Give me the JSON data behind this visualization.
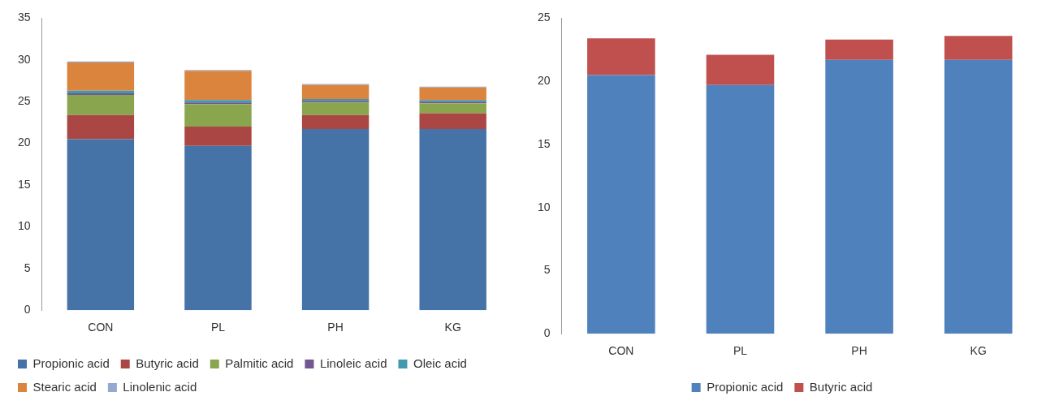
{
  "chart_data": [
    {
      "type": "bar",
      "stacked": true,
      "categories": [
        "CON",
        "PL",
        "PH",
        "KG"
      ],
      "ylim": [
        0,
        35
      ],
      "yticks": [
        0,
        5,
        10,
        15,
        20,
        25,
        30,
        35
      ],
      "grid": false,
      "legend": "bottom",
      "series": [
        {
          "name": "Propionic acid",
          "color": "#4572a7",
          "values": [
            20.5,
            19.7,
            21.7,
            21.7
          ]
        },
        {
          "name": "Butyric acid",
          "color": "#aa4643",
          "values": [
            2.9,
            2.3,
            1.7,
            1.9
          ]
        },
        {
          "name": "Palmitic acid",
          "color": "#89a54e",
          "values": [
            2.4,
            2.7,
            1.5,
            1.2
          ]
        },
        {
          "name": "Linoleic acid",
          "color": "#71588f",
          "values": [
            0.2,
            0.2,
            0.2,
            0.2
          ]
        },
        {
          "name": "Oleic acid",
          "color": "#4198af",
          "values": [
            0.3,
            0.3,
            0.2,
            0.2
          ]
        },
        {
          "name": "Stearic acid",
          "color": "#db843d",
          "values": [
            3.4,
            3.5,
            1.7,
            1.5
          ]
        },
        {
          "name": "Linolenic acid",
          "color": "#93a9cf",
          "values": [
            0.1,
            0.1,
            0.1,
            0.1
          ]
        }
      ]
    },
    {
      "type": "bar",
      "stacked": true,
      "categories": [
        "CON",
        "PL",
        "PH",
        "KG"
      ],
      "ylim": [
        0,
        25
      ],
      "yticks": [
        0,
        5,
        10,
        15,
        20,
        25
      ],
      "grid": false,
      "legend": "bottom",
      "series": [
        {
          "name": "Propionic acid",
          "color": "#4f81bd",
          "values": [
            20.5,
            19.7,
            21.7,
            21.7
          ]
        },
        {
          "name": "Butyric acid",
          "color": "#c0504d",
          "values": [
            2.9,
            2.4,
            1.6,
            1.9
          ]
        }
      ]
    }
  ]
}
